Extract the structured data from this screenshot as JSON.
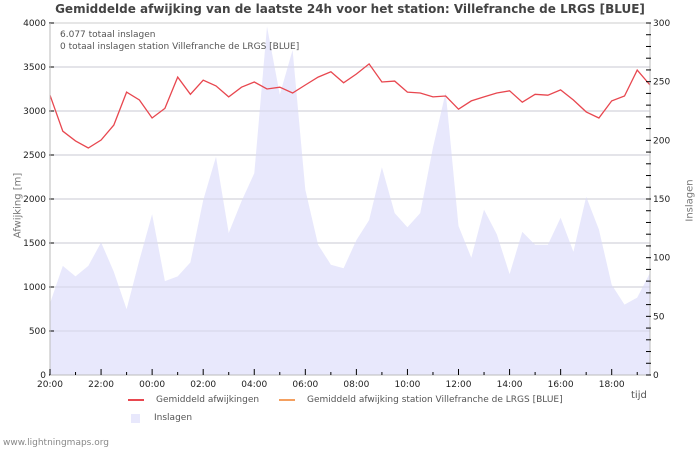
{
  "title": "Gemiddelde afwijking van de laatste 24h voor het station: Villefranche de LRGS [BLUE]",
  "info": {
    "line1": "6.077 totaal inslagen",
    "line2": "0 totaal inslagen station Villefranche de LRGS [BLUE]"
  },
  "axes": {
    "ylabel_left": "Afwijking  [m]",
    "ylabel_right": "Inslagen",
    "xlabel": "tijd"
  },
  "legend": {
    "item1": "Gemiddeld afwijkingen",
    "item2": "Gemiddeld afwijking station Villefranche de LRGS [BLUE]",
    "item3": "Inslagen"
  },
  "footer": "www.lightningmaps.org",
  "colors": {
    "line_all": "#e8474f",
    "line_station": "#f4a060",
    "area": "#e8e8fc",
    "grid": "#cccccc"
  },
  "chart_data": {
    "type": "line",
    "title": "Gemiddelde afwijking van de laatste 24h voor het station: Villefranche de LRGS [BLUE]",
    "xlabel": "tijd",
    "ylabel": "Afwijking [m]",
    "ylabel_right": "Inslagen",
    "ylim": [
      0,
      4000
    ],
    "ylim_right": [
      0,
      300
    ],
    "yticks": [
      0,
      500,
      1000,
      1500,
      2000,
      2500,
      3000,
      3500,
      4000
    ],
    "yticks_right": [
      0,
      50,
      100,
      150,
      200,
      250,
      300
    ],
    "xtick_labels": [
      "20:00",
      "22:00",
      "00:00",
      "02:00",
      "04:00",
      "06:00",
      "08:00",
      "10:00",
      "12:00",
      "14:00",
      "16:00",
      "18:00"
    ],
    "grid": true,
    "legend_position": "bottom",
    "x": [
      "20:00",
      "20:30",
      "21:00",
      "21:30",
      "22:00",
      "22:30",
      "23:00",
      "23:30",
      "00:00",
      "00:30",
      "01:00",
      "01:30",
      "02:00",
      "02:30",
      "03:00",
      "03:30",
      "04:00",
      "04:30",
      "05:00",
      "05:30",
      "06:00",
      "06:30",
      "07:00",
      "07:30",
      "08:00",
      "08:30",
      "09:00",
      "09:30",
      "10:00",
      "10:30",
      "11:00",
      "11:30",
      "12:00",
      "12:30",
      "13:00",
      "13:30",
      "14:00",
      "14:30",
      "15:00",
      "15:30",
      "16:00",
      "16:30",
      "17:00",
      "17:30",
      "18:00",
      "18:30",
      "19:00",
      "19:30"
    ],
    "series": [
      {
        "name": "Gemiddeld afwijkingen",
        "type": "line",
        "axis": "left",
        "values": [
          3180,
          2770,
          2660,
          2580,
          2670,
          2840,
          3215,
          3125,
          2920,
          3030,
          3385,
          3190,
          3350,
          3285,
          3160,
          3270,
          3330,
          3250,
          3270,
          3205,
          3295,
          3385,
          3445,
          3320,
          3420,
          3535,
          3330,
          3340,
          3215,
          3205,
          3160,
          3170,
          3020,
          3115,
          3160,
          3205,
          3230,
          3100,
          3190,
          3180,
          3240,
          3125,
          2990,
          2920,
          3115,
          3170,
          3465,
          3295
        ]
      },
      {
        "name": "Gemiddeld afwijking station Villefranche de LRGS [BLUE]",
        "type": "line",
        "axis": "left",
        "values": []
      },
      {
        "name": "Inslagen",
        "type": "area",
        "axis": "right",
        "values": [
          61,
          93,
          84,
          93,
          113,
          88,
          56,
          98,
          137,
          80,
          84,
          96,
          149,
          186,
          121,
          148,
          172,
          297,
          239,
          277,
          158,
          111,
          94,
          91,
          115,
          132,
          177,
          138,
          126,
          138,
          194,
          241,
          127,
          100,
          141,
          120,
          86,
          122,
          111,
          111,
          134,
          105,
          152,
          124,
          77,
          60,
          66,
          87
        ]
      }
    ]
  }
}
